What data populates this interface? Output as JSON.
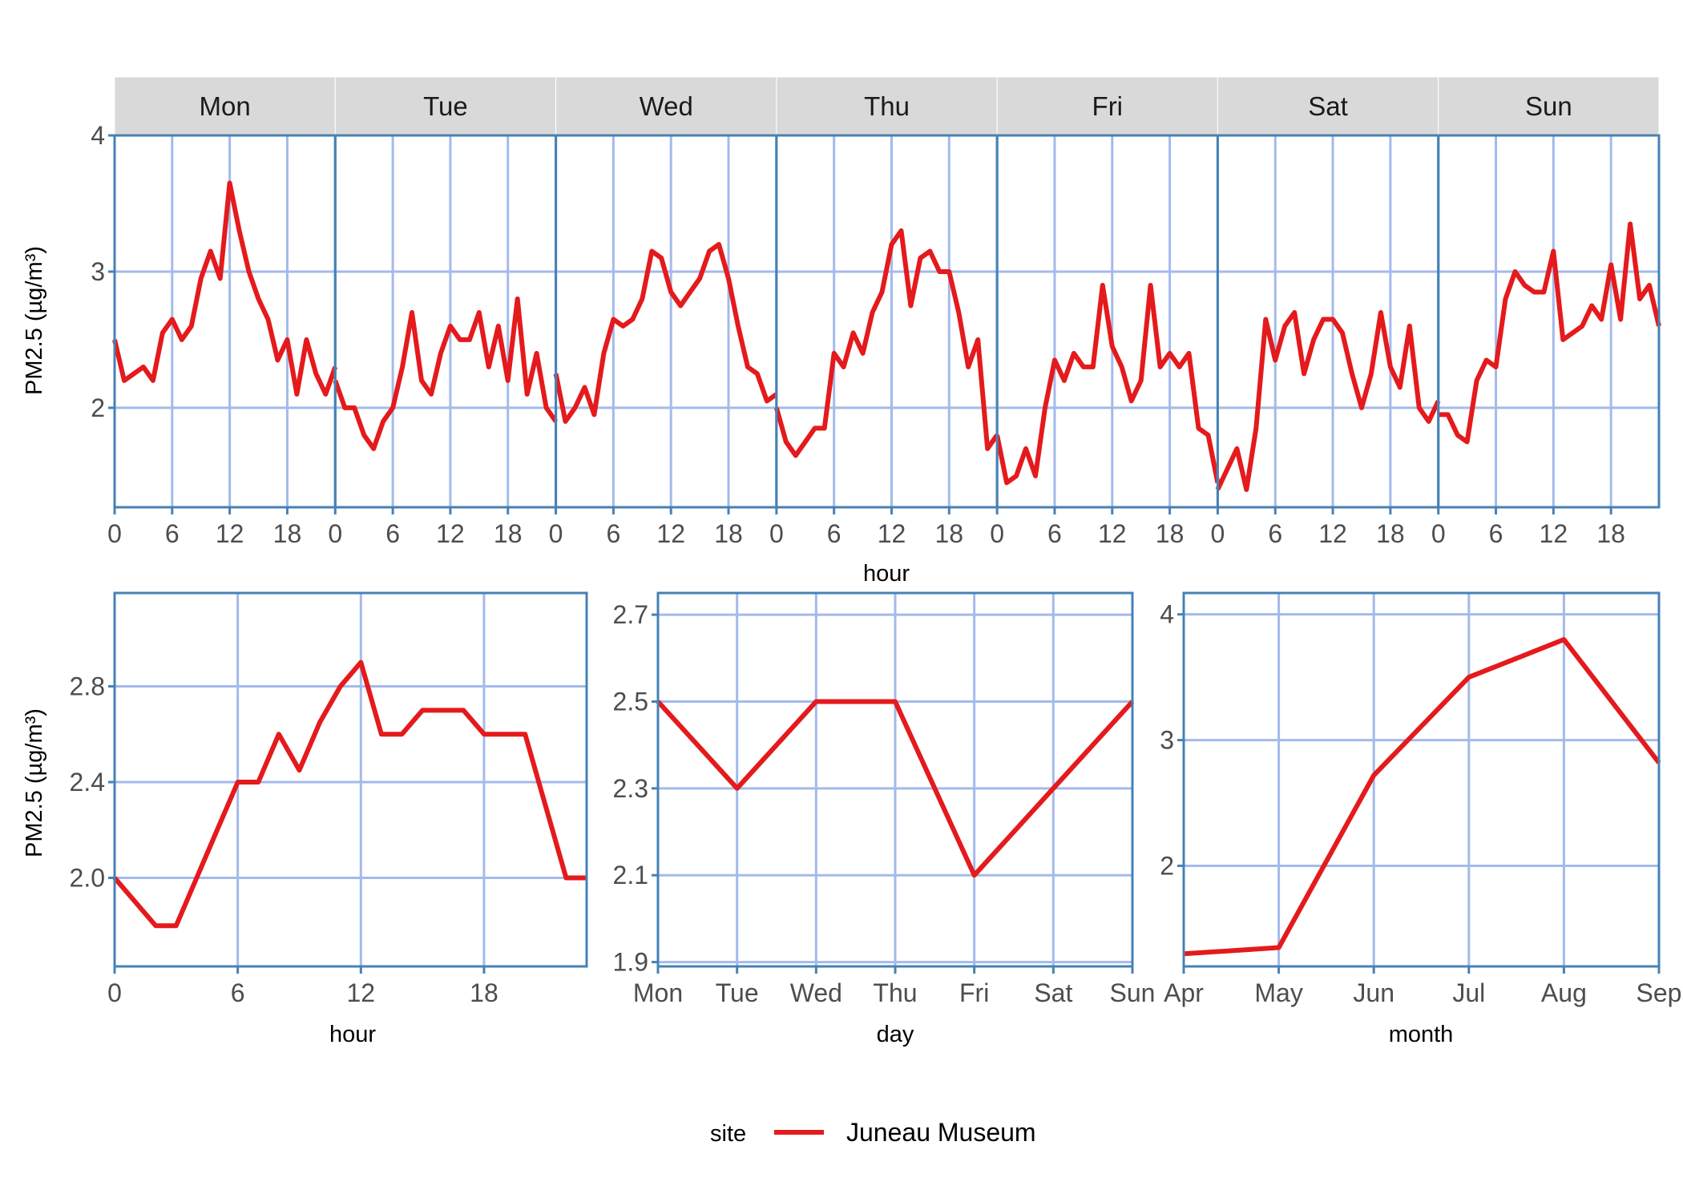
{
  "colors": {
    "line": "#e41a1c",
    "panel_border": "#4682b4",
    "grid": "#a3baec",
    "strip": "#d9d9d9",
    "tick_text": "#4d4d4d"
  },
  "legend": {
    "title": "site",
    "entries": [
      {
        "label": "Juneau Museum",
        "color": "#e41a1c"
      }
    ],
    "position": "bottom"
  },
  "chart_data": [
    {
      "type": "line",
      "facet_by": "day",
      "facets": [
        "Mon",
        "Tue",
        "Wed",
        "Thu",
        "Fri",
        "Sat",
        "Sun"
      ],
      "xlabel": "hour",
      "ylabel": "PM2.5 (µg/m³)",
      "xlim": [
        0,
        23
      ],
      "ylim": [
        1.27,
        4
      ],
      "x_ticks": [
        0,
        6,
        12,
        18
      ],
      "y_ticks": [
        2,
        3,
        4
      ],
      "grid": true,
      "series": [
        {
          "name": "Juneau Museum",
          "x": [
            0,
            1,
            2,
            3,
            4,
            5,
            6,
            7,
            8,
            9,
            10,
            11,
            12,
            13,
            14,
            15,
            16,
            17,
            18,
            19,
            20,
            21,
            22,
            23
          ],
          "values_by_facet": {
            "Mon": [
              2.5,
              2.2,
              2.25,
              2.3,
              2.2,
              2.55,
              2.65,
              2.5,
              2.6,
              2.95,
              3.15,
              2.95,
              3.65,
              3.3,
              3.0,
              2.8,
              2.65,
              2.35,
              2.5,
              2.1,
              2.5,
              2.25,
              2.1,
              2.3
            ],
            "Tue": [
              2.2,
              2.0,
              2.0,
              1.8,
              1.7,
              1.9,
              2.0,
              2.3,
              2.7,
              2.2,
              2.1,
              2.4,
              2.6,
              2.5,
              2.5,
              2.7,
              2.3,
              2.6,
              2.2,
              2.8,
              2.1,
              2.4,
              2.0,
              1.9
            ],
            "Wed": [
              2.25,
              1.9,
              2.0,
              2.15,
              1.95,
              2.4,
              2.65,
              2.6,
              2.65,
              2.8,
              3.15,
              3.1,
              2.85,
              2.75,
              2.85,
              2.95,
              3.15,
              3.2,
              2.95,
              2.6,
              2.3,
              2.25,
              2.05,
              2.1
            ],
            "Thu": [
              2.0,
              1.75,
              1.65,
              1.75,
              1.85,
              1.85,
              2.4,
              2.3,
              2.55,
              2.4,
              2.7,
              2.85,
              3.2,
              3.3,
              2.75,
              3.1,
              3.15,
              3.0,
              3.0,
              2.7,
              2.3,
              2.5,
              1.7,
              1.8
            ],
            "Fri": [
              1.8,
              1.45,
              1.5,
              1.7,
              1.5,
              2.0,
              2.35,
              2.2,
              2.4,
              2.3,
              2.3,
              2.9,
              2.45,
              2.3,
              2.05,
              2.2,
              2.9,
              2.3,
              2.4,
              2.3,
              2.4,
              1.85,
              1.8,
              1.45
            ],
            "Sat": [
              1.4,
              1.55,
              1.7,
              1.4,
              1.85,
              2.65,
              2.35,
              2.6,
              2.7,
              2.25,
              2.5,
              2.65,
              2.65,
              2.55,
              2.25,
              2.0,
              2.25,
              2.7,
              2.3,
              2.15,
              2.6,
              2.0,
              1.9,
              2.05
            ],
            "Sun": [
              1.95,
              1.95,
              1.8,
              1.75,
              2.2,
              2.35,
              2.3,
              2.8,
              3.0,
              2.9,
              2.85,
              2.85,
              3.15,
              2.5,
              2.55,
              2.6,
              2.75,
              2.65,
              3.05,
              2.65,
              3.35,
              2.8,
              2.9,
              2.6
            ]
          }
        }
      ]
    },
    {
      "type": "line",
      "xlabel": "hour",
      "ylabel": "PM2.5 (µg/m³)",
      "xlim": [
        0,
        23
      ],
      "ylim": [
        1.63,
        3.19
      ],
      "x_ticks": [
        0,
        6,
        12,
        18
      ],
      "y_ticks": [
        "2.0",
        "2.4",
        "2.8"
      ],
      "grid": true,
      "x": [
        0,
        1,
        2,
        3,
        4,
        5,
        6,
        7,
        8,
        9,
        10,
        11,
        12,
        13,
        14,
        15,
        16,
        17,
        18,
        19,
        20,
        21,
        22,
        23
      ],
      "series": [
        {
          "name": "Juneau Museum",
          "values": [
            2.0,
            1.9,
            1.8,
            1.8,
            2.0,
            2.2,
            2.4,
            2.4,
            2.6,
            2.45,
            2.65,
            2.8,
            2.9,
            2.6,
            2.6,
            2.7,
            2.7,
            2.7,
            2.6,
            2.6,
            2.6,
            2.3,
            2.0,
            2.0
          ]
        }
      ]
    },
    {
      "type": "line",
      "xlabel": "day",
      "ylabel": "",
      "categories": [
        "Mon",
        "Tue",
        "Wed",
        "Thu",
        "Fri",
        "Sat",
        "Sun"
      ],
      "ylim": [
        1.89,
        2.75
      ],
      "y_ticks": [
        "1.9",
        "2.1",
        "2.3",
        "2.5",
        "2.7"
      ],
      "grid": true,
      "series": [
        {
          "name": "Juneau Museum",
          "values": [
            2.5,
            2.3,
            2.5,
            2.5,
            2.1,
            2.3,
            2.5
          ]
        }
      ]
    },
    {
      "type": "line",
      "xlabel": "month",
      "ylabel": "",
      "categories": [
        "Apr",
        "May",
        "Jun",
        "Jul",
        "Aug",
        "Sep"
      ],
      "ylim": [
        1.2,
        4.17
      ],
      "y_ticks": [
        "2",
        "3",
        "4"
      ],
      "grid": true,
      "series": [
        {
          "name": "Juneau Museum",
          "values": [
            1.3,
            1.35,
            2.72,
            3.5,
            3.8,
            2.82
          ]
        }
      ]
    }
  ]
}
